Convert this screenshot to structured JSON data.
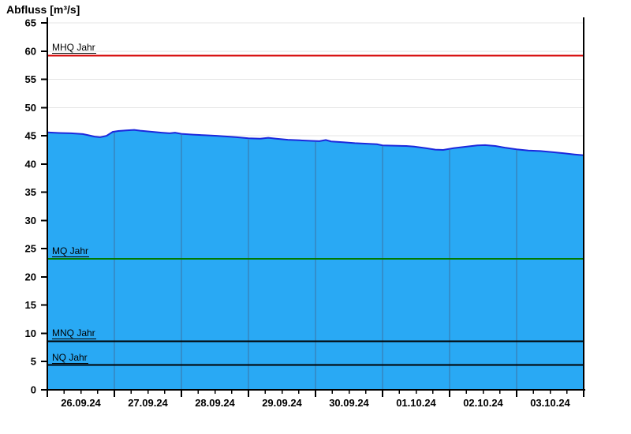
{
  "header": {
    "title": "Abfluss [m³/s]"
  },
  "chart_data": {
    "type": "area",
    "title": "Abfluss [m³/s]",
    "ylabel": "Abfluss [m³/s]",
    "xlabel": "",
    "ylim": [
      0,
      65
    ],
    "yticks": [
      0,
      5,
      10,
      15,
      20,
      25,
      30,
      35,
      40,
      45,
      50,
      55,
      60,
      65
    ],
    "x_categories": [
      "26.09.24",
      "27.09.24",
      "28.09.24",
      "29.09.24",
      "30.09.24",
      "01.10.24",
      "02.10.24",
      "03.10.24"
    ],
    "x_hours_total": 192,
    "x_minor_tick_hours": 6,
    "grid": true,
    "legend_position": "none",
    "series": [
      {
        "name": "Abfluss",
        "unit": "m³/s",
        "x_hours": [
          0,
          4.2,
          8.5,
          12.7,
          14.7,
          16.9,
          18.9,
          21.2,
          23.4,
          25.4,
          28.2,
          31.1,
          33.3,
          36.7,
          40.9,
          43.8,
          45.7,
          48.0,
          52.2,
          56.5,
          60.7,
          64.9,
          67.8,
          72.0,
          76.2,
          79.1,
          81.9,
          86.1,
          90.4,
          94.6,
          97.4,
          99.7,
          101.6,
          105.9,
          110.1,
          114.4,
          118.0,
          120.0,
          124.2,
          128.5,
          131.3,
          135.5,
          138.9,
          141.7,
          145.4,
          149.6,
          153.9,
          156.7,
          160.4,
          163.8,
          168.0,
          172.2,
          176.5,
          180.7,
          185.0,
          188.7,
          192.0
        ],
        "values": [
          45.6,
          45.5,
          45.45,
          45.3,
          45.1,
          44.85,
          44.75,
          45.0,
          45.7,
          45.85,
          45.95,
          46.05,
          45.9,
          45.75,
          45.55,
          45.45,
          45.55,
          45.35,
          45.2,
          45.1,
          45.0,
          44.85,
          44.75,
          44.55,
          44.5,
          44.65,
          44.5,
          44.3,
          44.2,
          44.1,
          44.05,
          44.25,
          44.0,
          43.85,
          43.7,
          43.6,
          43.5,
          43.3,
          43.25,
          43.2,
          43.1,
          42.8,
          42.55,
          42.5,
          42.8,
          43.05,
          43.3,
          43.35,
          43.2,
          42.9,
          42.6,
          42.4,
          42.3,
          42.1,
          41.9,
          41.7,
          41.55
        ]
      }
    ],
    "reference_lines": [
      {
        "label": "MHQ Jahr",
        "value": 59.2,
        "color": "#d40000"
      },
      {
        "label": "MQ Jahr",
        "value": 23.2,
        "color": "#007a00"
      },
      {
        "label": "MNQ Jahr",
        "value": 8.6,
        "color": "#000000"
      },
      {
        "label": "NQ Jahr",
        "value": 4.4,
        "color": "#000000"
      }
    ],
    "colors": {
      "area_fill": "#29a9f4",
      "area_line": "#1c28dc",
      "grid_line": "#e4e4e4",
      "day_grid_line": "#3a74a4",
      "axis": "#000000",
      "text": "#000000"
    }
  }
}
